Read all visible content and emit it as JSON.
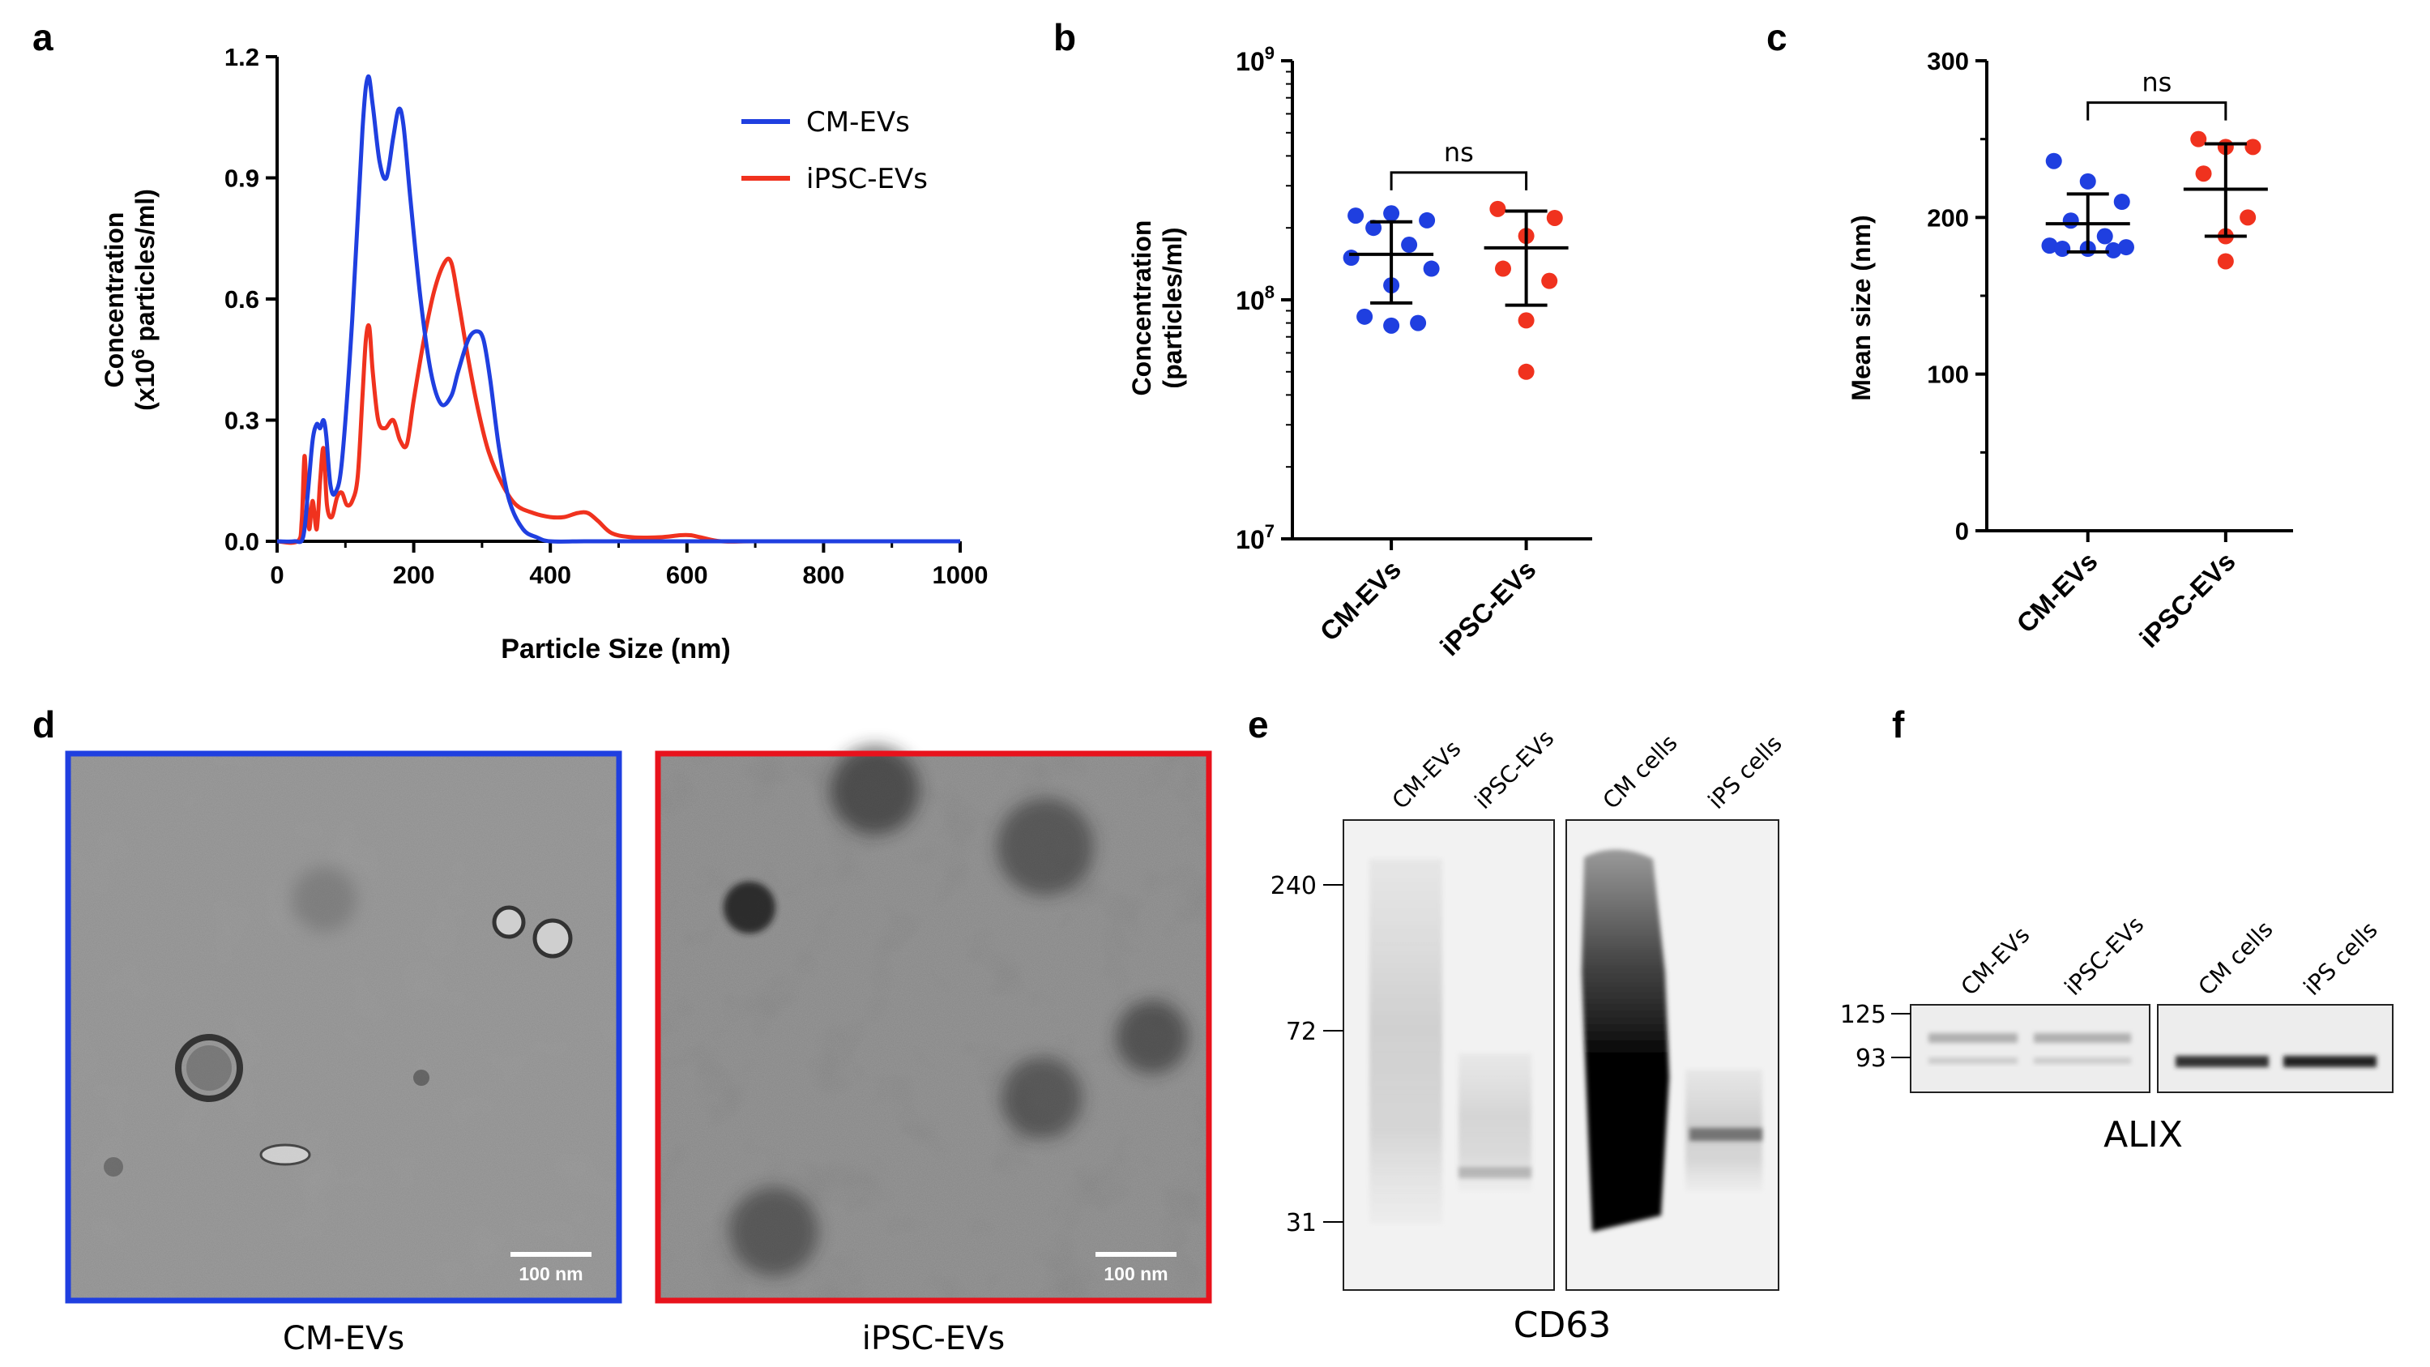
{
  "panels": {
    "a": "a",
    "b": "b",
    "c": "c",
    "d": "d",
    "e": "e",
    "f": "f"
  },
  "chart_data": [
    {
      "panel": "a",
      "type": "line",
      "xlabel": "Particle Size (nm)",
      "ylabel_line1": "Concentration",
      "ylabel_line2_pre": "(x10",
      "ylabel_line2_sup": "6",
      "ylabel_line2_post": " particles/ml)",
      "xlim": [
        0,
        1000
      ],
      "ylim": [
        0,
        1.2
      ],
      "xticks": [
        "0",
        "200",
        "400",
        "600",
        "800",
        "1000"
      ],
      "yticks": [
        "0.0",
        "0.3",
        "0.6",
        "0.9",
        "1.2"
      ],
      "legend_position": "top-right",
      "series": [
        {
          "name": "CM-EVs",
          "color": "#1f3fe0",
          "x": [
            0,
            25,
            38,
            45,
            52,
            58,
            63,
            68,
            72,
            78,
            85,
            95,
            110,
            125,
            133,
            140,
            150,
            160,
            170,
            178,
            185,
            195,
            210,
            225,
            240,
            255,
            265,
            280,
            292,
            302,
            312,
            325,
            340,
            360,
            380,
            400,
            450,
            500,
            600,
            800,
            1000
          ],
          "y": [
            0,
            0,
            0.01,
            0.12,
            0.25,
            0.29,
            0.28,
            0.3,
            0.26,
            0.14,
            0.12,
            0.2,
            0.55,
            1.02,
            1.15,
            1.08,
            0.94,
            0.9,
            1.0,
            1.07,
            1.03,
            0.85,
            0.6,
            0.42,
            0.34,
            0.36,
            0.42,
            0.5,
            0.52,
            0.5,
            0.4,
            0.23,
            0.1,
            0.03,
            0.01,
            0,
            0,
            0,
            0,
            0,
            0
          ]
        },
        {
          "name": "iPSC-EVs",
          "color": "#f0321e",
          "x": [
            0,
            30,
            36,
            40,
            43,
            47,
            52,
            58,
            63,
            68,
            73,
            80,
            88,
            95,
            102,
            110,
            118,
            125,
            130,
            135,
            140,
            148,
            158,
            170,
            180,
            190,
            200,
            215,
            230,
            245,
            255,
            265,
            280,
            295,
            310,
            330,
            350,
            375,
            400,
            420,
            440,
            455,
            470,
            490,
            520,
            560,
            590,
            605,
            620,
            650,
            700,
            800,
            1000
          ],
          "y": [
            0,
            0,
            0.05,
            0.21,
            0.12,
            0.03,
            0.1,
            0.03,
            0.15,
            0.23,
            0.09,
            0.06,
            0.11,
            0.12,
            0.09,
            0.1,
            0.16,
            0.36,
            0.5,
            0.53,
            0.42,
            0.3,
            0.28,
            0.3,
            0.25,
            0.24,
            0.35,
            0.5,
            0.62,
            0.69,
            0.69,
            0.6,
            0.45,
            0.32,
            0.22,
            0.14,
            0.09,
            0.07,
            0.06,
            0.06,
            0.07,
            0.07,
            0.05,
            0.02,
            0.01,
            0.01,
            0.015,
            0.015,
            0.01,
            0,
            0,
            0,
            0
          ]
        }
      ]
    },
    {
      "panel": "b",
      "type": "scatter",
      "ylabel_line1": "Concentration",
      "ylabel_line2": "(particles/ml)",
      "y_scale": "log",
      "ylim": [
        10000000,
        1000000000
      ],
      "ytick_base": "10",
      "ytick_exponents": [
        "9",
        "8",
        "7"
      ],
      "categories": [
        "CM-EVs",
        "iPSC-EVs"
      ],
      "significance": "ns",
      "series": [
        {
          "name": "CM-EVs",
          "color": "#1f3fe0",
          "values": [
            225000000,
            230000000,
            215000000,
            200000000,
            170000000,
            150000000,
            135000000,
            115000000,
            85000000,
            80000000,
            78000000
          ],
          "mean": 155000000,
          "sd": [
            97000000,
            212000000
          ]
        },
        {
          "name": "iPSC-EVs",
          "color": "#f0321e",
          "values": [
            240000000,
            220000000,
            185000000,
            135000000,
            120000000,
            82000000,
            50000000
          ],
          "mean": 165000000,
          "sd": [
            95000000,
            235000000
          ]
        }
      ]
    },
    {
      "panel": "c",
      "type": "scatter",
      "ylabel": "Mean size (nm)",
      "ylim": [
        0,
        300
      ],
      "yticks": [
        "0",
        "100",
        "200",
        "300"
      ],
      "categories": [
        "CM-EVs",
        "iPSC-EVs"
      ],
      "significance": "ns",
      "series": [
        {
          "name": "CM-EVs",
          "color": "#1f3fe0",
          "values": [
            236,
            223,
            210,
            198,
            188,
            182,
            181,
            180,
            180,
            179
          ],
          "mean": 196,
          "sd": [
            178,
            215
          ]
        },
        {
          "name": "iPSC-EVs",
          "color": "#f0321e",
          "values": [
            250,
            245,
            245,
            228,
            200,
            188,
            172
          ],
          "mean": 218,
          "sd": [
            188,
            247
          ]
        }
      ]
    }
  ],
  "tem": {
    "left_caption": "CM-EVs",
    "right_caption": "iPSC-EVs",
    "left_scale": "100 nm",
    "right_scale": "100 nm",
    "left_color": "#1f3fe0",
    "right_color": "#e8121c"
  },
  "blot_e": {
    "lanes": [
      "CM-EVs",
      "iPSC-EVs",
      "CM cells",
      "iPS cells"
    ],
    "markers": [
      "240",
      "72",
      "31"
    ],
    "caption": "CD63"
  },
  "blot_f": {
    "lanes": [
      "CM-EVs",
      "iPSC-EVs",
      "CM cells",
      "iPS cells"
    ],
    "markers": [
      "125",
      "93"
    ],
    "caption": "ALIX"
  }
}
